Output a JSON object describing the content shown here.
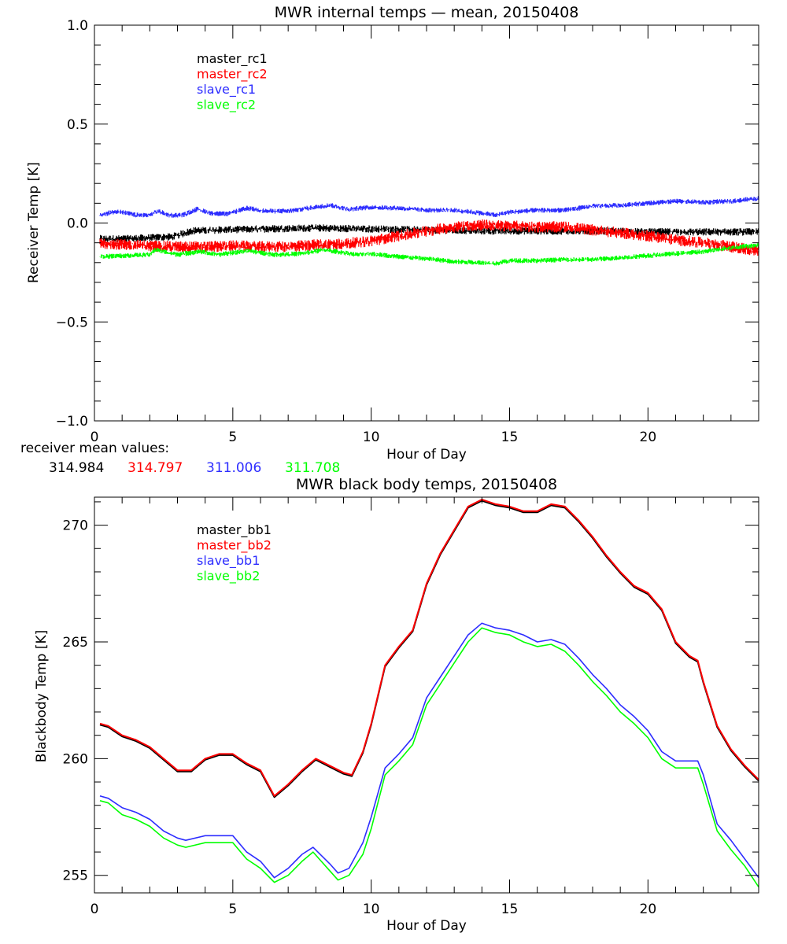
{
  "chart_data": [
    {
      "type": "line",
      "title": "MWR internal temps — mean, 20150408",
      "xlabel": "Hour of Day",
      "ylabel": "Receiver Temp [K]",
      "xlim": [
        0,
        24
      ],
      "ylim": [
        -1.0,
        1.0
      ],
      "xticks": [
        0,
        5,
        10,
        15,
        20
      ],
      "xtick_labels": [
        "0",
        "5",
        "10",
        "15",
        "20"
      ],
      "x_minor_step": 1,
      "yticks": [
        -1.0,
        -0.5,
        0.0,
        0.5,
        1.0
      ],
      "ytick_labels": [
        "−1.0",
        "−0.5",
        "0.0",
        "0.5",
        "1.0"
      ],
      "y_minor_step": 0.1,
      "grid": false,
      "legend_placement": "top-left-inside",
      "noisy": true,
      "series": [
        {
          "name": "master_rc1",
          "color": "#000000",
          "noise": 0.012,
          "x": [
            0.2,
            1,
            2,
            2.8,
            3.5,
            4.5,
            6,
            8,
            10,
            12,
            14,
            16,
            18,
            20,
            22,
            24
          ],
          "y": [
            -0.08,
            -0.08,
            -0.075,
            -0.07,
            -0.04,
            -0.035,
            -0.03,
            -0.025,
            -0.03,
            -0.035,
            -0.04,
            -0.04,
            -0.04,
            -0.045,
            -0.045,
            -0.045
          ]
        },
        {
          "name": "master_rc2",
          "color": "#ff0000",
          "noise": 0.018,
          "x": [
            0.2,
            1,
            2,
            3,
            4,
            5,
            6,
            7,
            8,
            9,
            10,
            11,
            12,
            13,
            14,
            15,
            16,
            17,
            18,
            19,
            20,
            21,
            22,
            23,
            24
          ],
          "y": [
            -0.1,
            -0.11,
            -0.115,
            -0.12,
            -0.12,
            -0.115,
            -0.12,
            -0.12,
            -0.11,
            -0.105,
            -0.09,
            -0.065,
            -0.04,
            -0.02,
            -0.01,
            -0.015,
            -0.02,
            -0.02,
            -0.035,
            -0.05,
            -0.065,
            -0.085,
            -0.1,
            -0.12,
            -0.14
          ]
        },
        {
          "name": "slave_rc1",
          "color": "#2d2dff",
          "noise": 0.008,
          "x": [
            0.2,
            0.8,
            1.5,
            2,
            2.3,
            2.7,
            3.2,
            3.7,
            4.2,
            4.8,
            5.5,
            6.2,
            7,
            7.7,
            8.5,
            9.2,
            10,
            11,
            12,
            13,
            14,
            14.5,
            15,
            16,
            17,
            18,
            19,
            20,
            21,
            22,
            23,
            24
          ],
          "y": [
            0.04,
            0.06,
            0.04,
            0.04,
            0.06,
            0.04,
            0.04,
            0.07,
            0.05,
            0.045,
            0.075,
            0.06,
            0.06,
            0.075,
            0.09,
            0.07,
            0.08,
            0.075,
            0.065,
            0.065,
            0.05,
            0.04,
            0.055,
            0.065,
            0.065,
            0.085,
            0.09,
            0.1,
            0.11,
            0.105,
            0.11,
            0.125
          ]
        },
        {
          "name": "slave_rc2",
          "color": "#00ff00",
          "noise": 0.008,
          "x": [
            0.2,
            1,
            2,
            2.2,
            3,
            3.8,
            4.5,
            5.5,
            6.5,
            7.5,
            8.3,
            9.5,
            10,
            11,
            12,
            13,
            14,
            14.5,
            15,
            16,
            17,
            18,
            19,
            20,
            21,
            22,
            23,
            24
          ],
          "y": [
            -0.17,
            -0.165,
            -0.16,
            -0.135,
            -0.16,
            -0.145,
            -0.16,
            -0.14,
            -0.16,
            -0.155,
            -0.135,
            -0.16,
            -0.155,
            -0.17,
            -0.18,
            -0.195,
            -0.2,
            -0.205,
            -0.19,
            -0.19,
            -0.185,
            -0.185,
            -0.175,
            -0.165,
            -0.155,
            -0.145,
            -0.125,
            -0.11
          ]
        }
      ],
      "annotation": {
        "label": "receiver mean values:",
        "values": [
          {
            "text": "314.984",
            "color": "#000000"
          },
          {
            "text": "314.797",
            "color": "#ff0000"
          },
          {
            "text": "311.006",
            "color": "#2d2dff"
          },
          {
            "text": "311.708",
            "color": "#00ff00"
          }
        ]
      }
    },
    {
      "type": "line",
      "title": "MWR black body temps, 20150408",
      "xlabel": "Hour of Day",
      "ylabel": "Blackbody Temp [K]",
      "xlim": [
        0,
        24
      ],
      "ylim": [
        254.25,
        271.2
      ],
      "xticks": [
        0,
        5,
        10,
        15,
        20
      ],
      "xtick_labels": [
        "0",
        "5",
        "10",
        "15",
        "20"
      ],
      "x_minor_step": 1,
      "yticks": [
        255,
        260,
        265,
        270
      ],
      "ytick_labels": [
        "255",
        "260",
        "265",
        "270"
      ],
      "y_minor_step": 1,
      "grid": false,
      "legend_placement": "top-left-inside",
      "noisy": false,
      "series": [
        {
          "name": "master_bb1",
          "color": "#000000",
          "x": [
            0.2,
            0.5,
            1,
            1.5,
            2,
            2.5,
            3,
            3.5,
            4,
            4.5,
            5,
            5.5,
            6,
            6.5,
            7,
            7.5,
            8,
            8.5,
            9,
            9.3,
            9.7,
            10,
            10.5,
            11,
            11.5,
            12,
            12.5,
            13,
            13.5,
            14,
            14.5,
            15,
            15.5,
            16,
            16.5,
            17,
            17.5,
            18,
            18.5,
            19,
            19.5,
            20,
            20.5,
            21,
            21.5,
            21.8,
            22,
            22.5,
            23,
            23.5,
            24
          ],
          "y": [
            261.45,
            261.35,
            260.95,
            260.75,
            260.45,
            259.95,
            259.45,
            259.45,
            259.95,
            260.15,
            260.15,
            259.75,
            259.45,
            258.35,
            258.85,
            259.45,
            259.95,
            259.65,
            259.35,
            259.25,
            260.25,
            261.45,
            263.95,
            264.75,
            265.45,
            267.45,
            268.75,
            269.75,
            270.75,
            271.05,
            270.85,
            270.75,
            270.55,
            270.55,
            270.85,
            270.75,
            270.15,
            269.45,
            268.65,
            267.95,
            267.35,
            267.05,
            266.35,
            264.95,
            264.35,
            264.15,
            263.25,
            261.35,
            260.35,
            259.65,
            259.05
          ]
        },
        {
          "name": "master_bb2",
          "color": "#ff0000",
          "x": [
            0.2,
            0.5,
            1,
            1.5,
            2,
            2.5,
            3,
            3.5,
            4,
            4.5,
            5,
            5.5,
            6,
            6.5,
            7,
            7.5,
            8,
            8.5,
            9,
            9.3,
            9.7,
            10,
            10.5,
            11,
            11.5,
            12,
            12.5,
            13,
            13.5,
            14,
            14.5,
            15,
            15.5,
            16,
            16.5,
            17,
            17.5,
            18,
            18.5,
            19,
            19.5,
            20,
            20.5,
            21,
            21.5,
            21.8,
            22,
            22.5,
            23,
            23.5,
            24
          ],
          "y": [
            261.5,
            261.4,
            261.0,
            260.8,
            260.5,
            260.0,
            259.5,
            259.5,
            260.0,
            260.2,
            260.2,
            259.8,
            259.5,
            258.4,
            258.9,
            259.5,
            260.0,
            259.7,
            259.4,
            259.3,
            260.3,
            261.5,
            264.0,
            264.8,
            265.5,
            267.5,
            268.8,
            269.8,
            270.8,
            271.1,
            270.9,
            270.8,
            270.6,
            270.6,
            270.9,
            270.8,
            270.2,
            269.5,
            268.7,
            268.0,
            267.4,
            267.1,
            266.4,
            265.0,
            264.4,
            264.2,
            263.3,
            261.4,
            260.4,
            259.7,
            259.1
          ]
        },
        {
          "name": "slave_bb1",
          "color": "#2d2dff",
          "x": [
            0.2,
            0.5,
            1,
            1.5,
            2,
            2.5,
            3,
            3.3,
            4,
            4.5,
            5,
            5.5,
            6,
            6.5,
            7,
            7.5,
            7.9,
            8.5,
            8.8,
            9.2,
            9.7,
            10,
            10.5,
            11,
            11.5,
            12,
            12.5,
            13,
            13.5,
            14,
            14.5,
            15,
            15.5,
            16,
            16.5,
            17,
            17.5,
            18,
            18.5,
            19,
            19.5,
            20,
            20.5,
            21,
            21.5,
            21.8,
            22,
            22.5,
            23,
            23.5,
            24
          ],
          "y": [
            258.4,
            258.3,
            257.9,
            257.7,
            257.4,
            256.9,
            256.6,
            256.5,
            256.7,
            256.7,
            256.7,
            256.0,
            255.6,
            254.9,
            255.3,
            255.9,
            256.2,
            255.5,
            255.1,
            255.3,
            256.4,
            257.5,
            259.6,
            260.2,
            260.9,
            262.6,
            263.5,
            264.4,
            265.3,
            265.8,
            265.6,
            265.5,
            265.3,
            265.0,
            265.1,
            264.9,
            264.3,
            263.6,
            263.0,
            262.3,
            261.8,
            261.2,
            260.3,
            259.9,
            259.9,
            259.9,
            259.3,
            257.2,
            256.5,
            255.7,
            254.9
          ]
        },
        {
          "name": "slave_bb2",
          "color": "#00ff00",
          "x": [
            0.2,
            0.5,
            1,
            1.5,
            2,
            2.5,
            3,
            3.3,
            4,
            4.5,
            5,
            5.5,
            6,
            6.5,
            7,
            7.5,
            7.9,
            8.5,
            8.8,
            9.2,
            9.7,
            10,
            10.5,
            11,
            11.5,
            12,
            12.5,
            13,
            13.5,
            14,
            14.5,
            15,
            15.5,
            16,
            16.5,
            17,
            17.5,
            18,
            18.5,
            19,
            19.5,
            20,
            20.5,
            21,
            21.5,
            21.8,
            22,
            22.5,
            23,
            23.5,
            24
          ],
          "y": [
            258.2,
            258.1,
            257.6,
            257.4,
            257.1,
            256.6,
            256.3,
            256.2,
            256.4,
            256.4,
            256.4,
            255.7,
            255.3,
            254.7,
            255.0,
            255.6,
            256.0,
            255.2,
            254.8,
            255.0,
            255.9,
            257.0,
            259.3,
            259.9,
            260.6,
            262.3,
            263.2,
            264.1,
            265.0,
            265.6,
            265.4,
            265.3,
            265.0,
            264.8,
            264.9,
            264.6,
            264.0,
            263.3,
            262.7,
            262.0,
            261.5,
            260.9,
            260.0,
            259.6,
            259.6,
            259.6,
            258.9,
            256.9,
            256.1,
            255.4,
            254.5
          ]
        }
      ]
    }
  ]
}
